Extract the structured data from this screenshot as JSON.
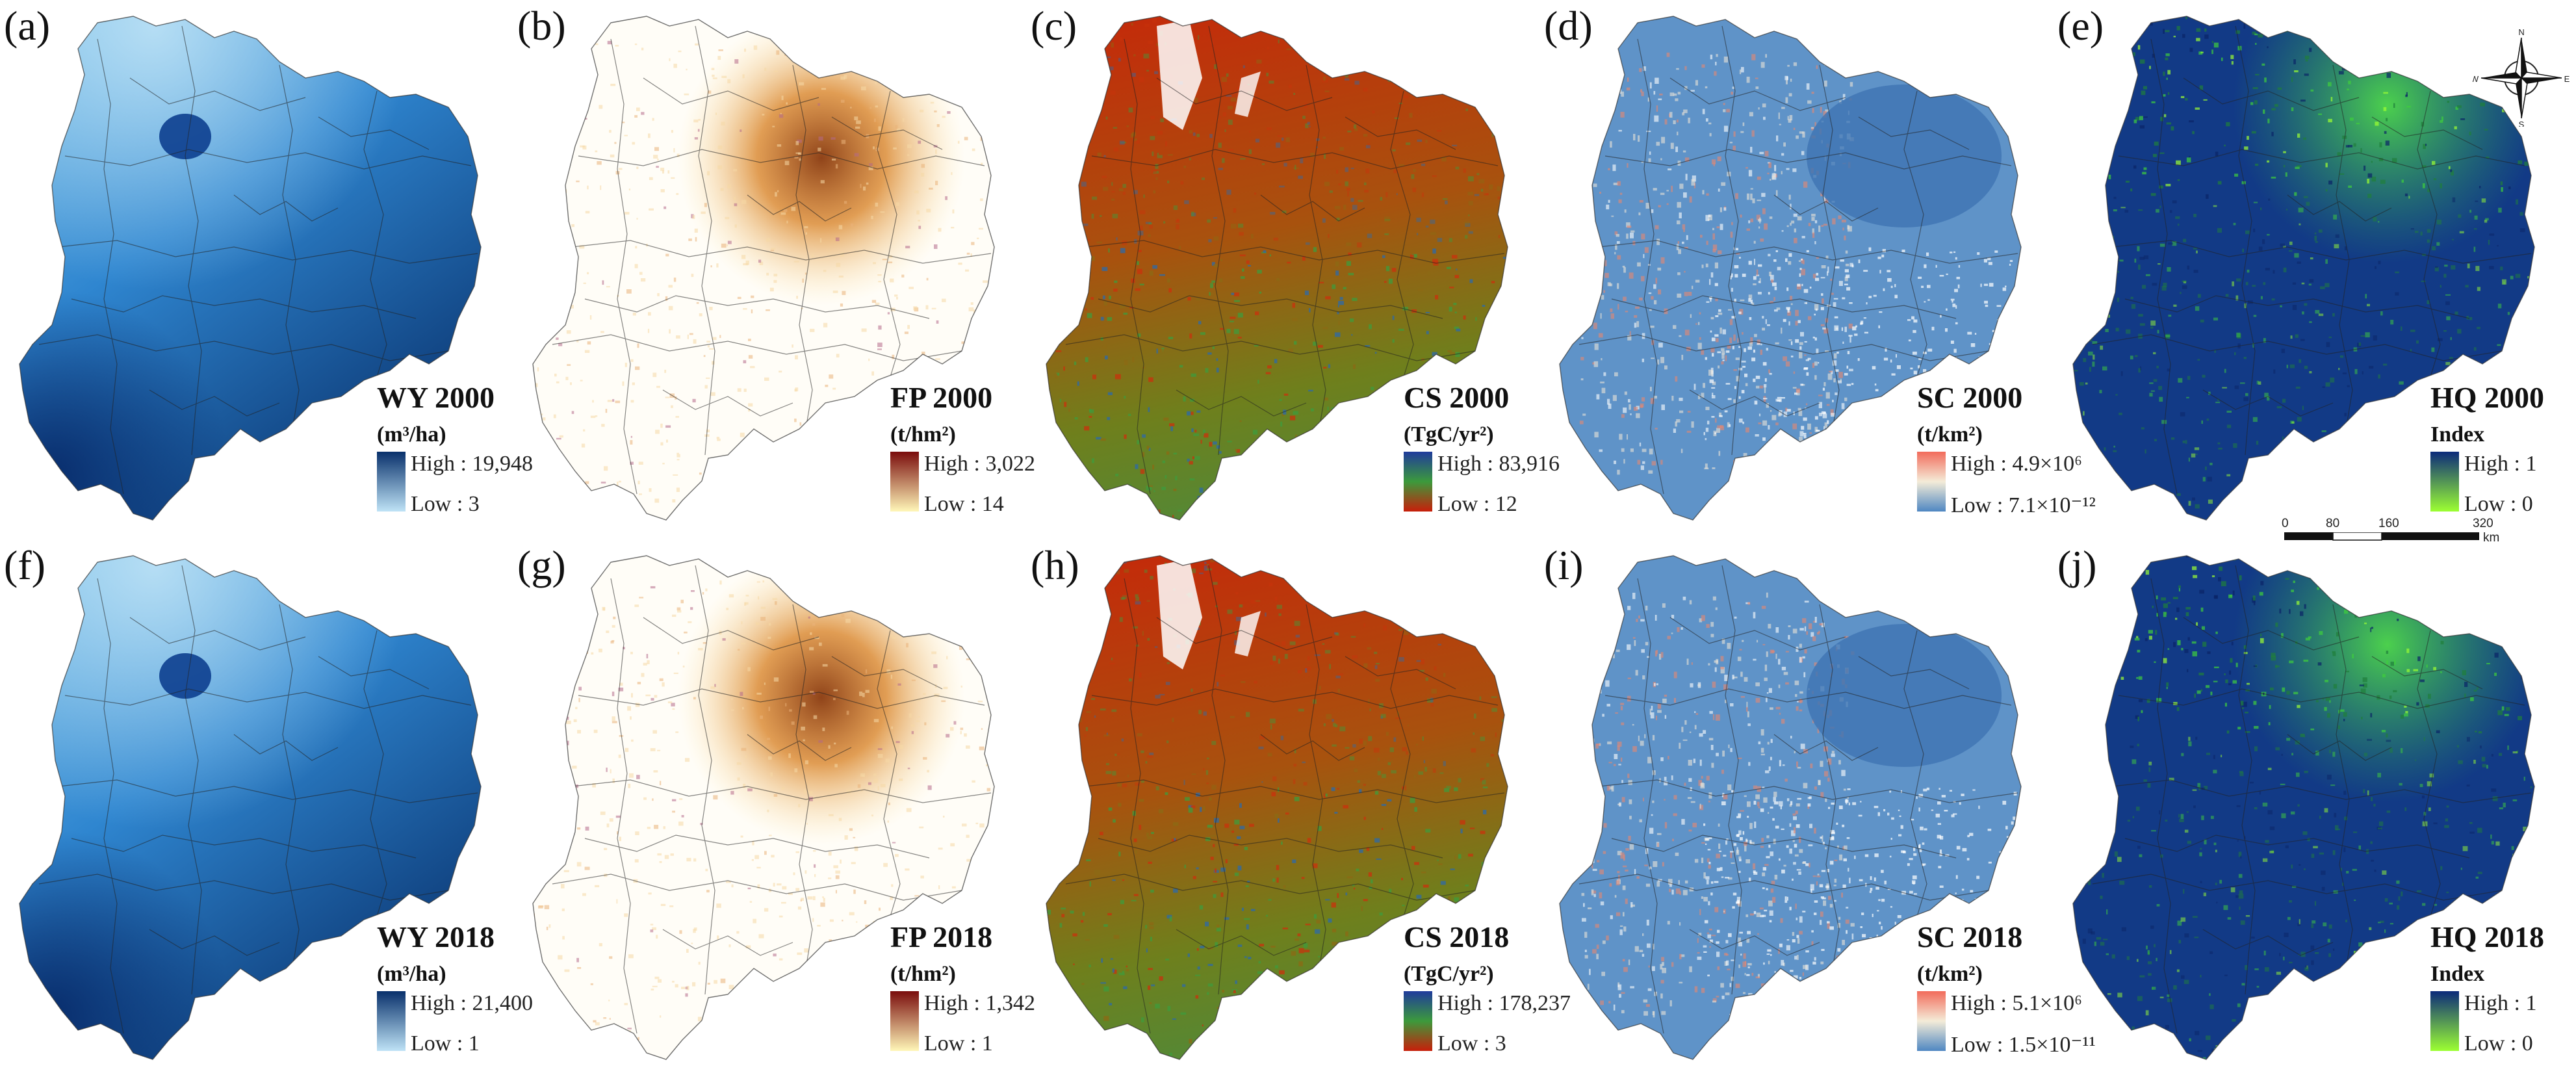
{
  "panels": [
    {
      "label": "(a)",
      "title": "WY 2000",
      "unit": "(m³/ha)",
      "high": "High : 19,948",
      "low": "Low : 3",
      "theme": "wy",
      "colors": {
        "high": "#08306b",
        "low": "#bfe3f6"
      }
    },
    {
      "label": "(b)",
      "title": "FP 2000",
      "unit": "(t/hm²)",
      "high": "High : 3,022",
      "low": "Low : 14",
      "theme": "fp",
      "colors": {
        "high": "#7a0c0c",
        "low": "#fff7b8"
      }
    },
    {
      "label": "(c)",
      "title": "CS 2000",
      "unit": "(TgC/yr²)",
      "high": "High : 83,916",
      "low": "Low : 12",
      "theme": "cs",
      "colors": {
        "high": "#1f3b9c",
        "mid": "#3c9a3c",
        "low": "#c81e0a"
      }
    },
    {
      "label": "(d)",
      "title": "SC 2000",
      "unit": "(t/km²)",
      "high": "High : 4.9×10⁶",
      "low": "Low : 7.1×10⁻¹²",
      "theme": "sc",
      "colors": {
        "high": "#f26b5b",
        "mid": "#f4ecd8",
        "low": "#4f87c2"
      }
    },
    {
      "label": "(e)",
      "title": "HQ 2000",
      "unit": "Index",
      "high": "High : 1",
      "low": "Low : 0",
      "theme": "hq",
      "colors": {
        "high": "#0b2a7a",
        "low": "#9cff32"
      }
    },
    {
      "label": "(f)",
      "title": "WY 2018",
      "unit": "(m³/ha)",
      "high": "High : 21,400",
      "low": "Low : 1",
      "theme": "wy",
      "colors": {
        "high": "#08306b",
        "low": "#bfe3f6"
      }
    },
    {
      "label": "(g)",
      "title": "FP 2018",
      "unit": "(t/hm²)",
      "high": "High : 1,342",
      "low": "Low : 1",
      "theme": "fp",
      "colors": {
        "high": "#7a0c0c",
        "low": "#fff7b8"
      }
    },
    {
      "label": "(h)",
      "title": "CS 2018",
      "unit": "(TgC/yr²)",
      "high": "High : 178,237",
      "low": "Low : 3",
      "theme": "cs",
      "colors": {
        "high": "#1f3b9c",
        "mid": "#3c9a3c",
        "low": "#c81e0a"
      }
    },
    {
      "label": "(i)",
      "title": "SC 2018",
      "unit": "(t/km²)",
      "high": "High : 5.1×10⁶",
      "low": "Low : 1.5×10⁻¹¹",
      "theme": "sc",
      "colors": {
        "high": "#f26b5b",
        "mid": "#f4ecd8",
        "low": "#4f87c2"
      }
    },
    {
      "label": "(j)",
      "title": "HQ 2018",
      "unit": "Index",
      "high": "High : 1",
      "low": "Low : 0",
      "theme": "hq",
      "colors": {
        "high": "#0b2a7a",
        "low": "#9cff32"
      }
    }
  ],
  "compass": {
    "n": "N",
    "s": "S",
    "e": "E",
    "w": "W",
    "icon": "north-arrow-compass-icon"
  },
  "scalebar": {
    "ticks": [
      "0",
      "80",
      "160",
      "320"
    ],
    "unit": "km"
  }
}
